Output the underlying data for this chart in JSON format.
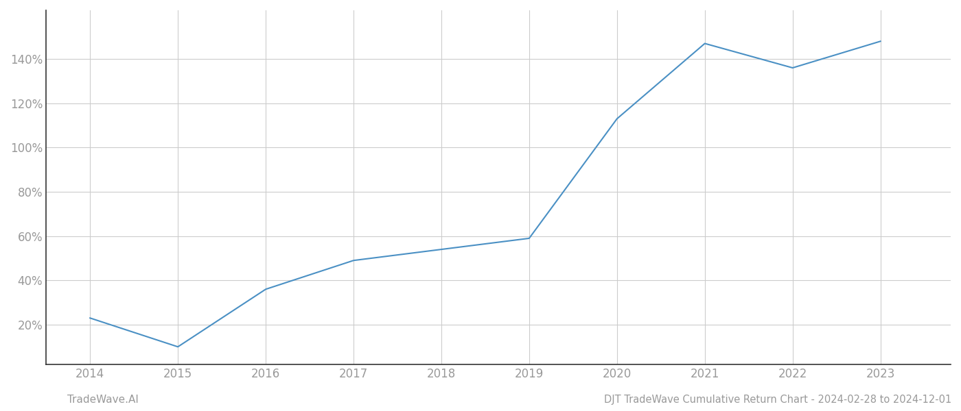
{
  "years": [
    2014,
    2015,
    2016,
    2017,
    2018,
    2019,
    2020,
    2021,
    2022,
    2023
  ],
  "values": [
    23,
    10,
    36,
    49,
    54,
    59,
    113,
    147,
    136,
    148
  ],
  "line_color": "#4a90c4",
  "line_width": 1.5,
  "background_color": "#ffffff",
  "grid_color": "#cccccc",
  "title": "DJT TradeWave Cumulative Return Chart - 2024-02-28 to 2024-12-01",
  "watermark": "TradeWave.AI",
  "xlim": [
    2013.5,
    2023.8
  ],
  "ylim": [
    2,
    162
  ],
  "yticks": [
    20,
    40,
    60,
    80,
    100,
    120,
    140
  ],
  "xticks": [
    2014,
    2015,
    2016,
    2017,
    2018,
    2019,
    2020,
    2021,
    2022,
    2023
  ],
  "title_fontsize": 10.5,
  "watermark_fontsize": 11,
  "tick_fontsize": 12,
  "tick_color": "#999999",
  "spine_color": "#333333"
}
